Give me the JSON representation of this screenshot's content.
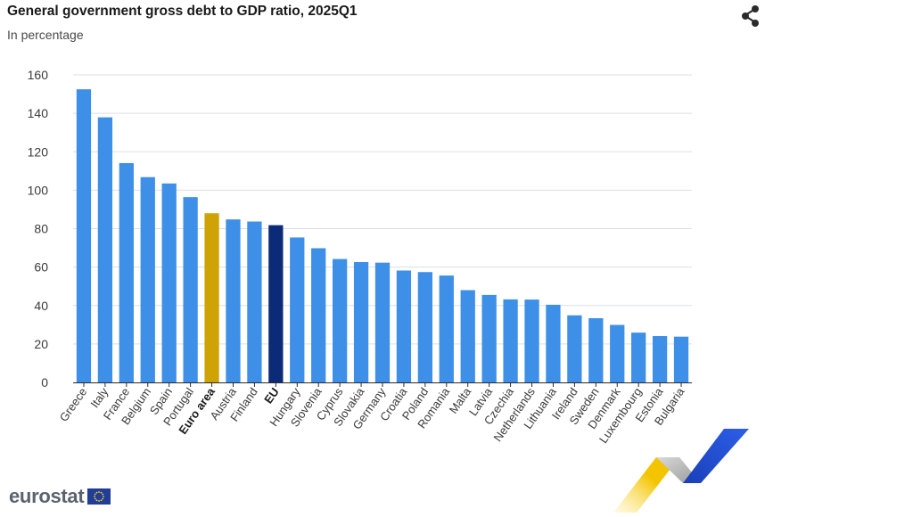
{
  "header": {
    "title": "General government gross debt to GDP ratio, 2025Q1",
    "subtitle": "In percentage"
  },
  "icons": {
    "share": "share-icon"
  },
  "branding": {
    "wordmark": "eurostat"
  },
  "colors": {
    "country": "#3d8fe8",
    "euro_area": "#cfa305",
    "eu": "#0b2a77",
    "grid": "#dcdfe6"
  },
  "chart_data": {
    "type": "bar",
    "title": "General government gross debt to GDP ratio, 2025Q1",
    "subtitle": "In percentage",
    "ylim": [
      0,
      160
    ],
    "yticks": [
      0,
      20,
      40,
      60,
      80,
      100,
      120,
      140,
      160
    ],
    "grid": true,
    "categories": [
      "Greece",
      "Italy",
      "France",
      "Belgium",
      "Spain",
      "Portugal",
      "Euro area",
      "Austria",
      "Finland",
      "EU",
      "Hungary",
      "Slovenia",
      "Cyprus",
      "Slovakia",
      "Germany",
      "Croatia",
      "Poland",
      "Romania",
      "Malta",
      "Latvia",
      "Czechia",
      "Netherlands",
      "Lithuania",
      "Ireland",
      "Sweden",
      "Denmark",
      "Luxembourg",
      "Estonia",
      "Bulgaria"
    ],
    "values": [
      152.5,
      137.9,
      114.1,
      106.8,
      103.5,
      96.4,
      88.0,
      84.8,
      83.7,
      81.8,
      75.4,
      69.8,
      64.2,
      62.6,
      62.3,
      58.2,
      57.4,
      55.6,
      48.0,
      45.5,
      43.2,
      43.1,
      40.4,
      34.9,
      33.4,
      29.9,
      25.9,
      24.1,
      23.8
    ],
    "highlight": {
      "Euro area": "euro_area",
      "EU": "eu"
    }
  }
}
